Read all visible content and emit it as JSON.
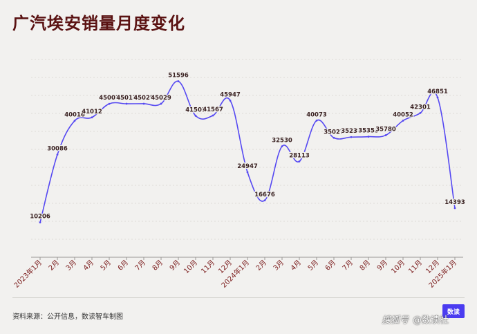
{
  "title": "广汽埃安销量月度变化",
  "source": "资料来源：公开信息，数读智车制图",
  "logo_text": "数读",
  "watermark": {
    "brand": "搜狐号",
    "handle": "@数读社"
  },
  "colors": {
    "line": "#5548f2",
    "title": "#5a1212",
    "tick": "#7a1a1a",
    "grid": "#d6d4d0",
    "background": "#f2f1ef"
  },
  "chart_data": {
    "type": "line",
    "title": "广汽埃安销量月度变化",
    "xlabel": "",
    "ylabel": "",
    "ylim": [
      0,
      58000
    ],
    "grid": true,
    "legend": "none",
    "categories": [
      "2023年1月",
      "2月",
      "3月",
      "4月",
      "5月",
      "6月",
      "7月",
      "8月",
      "9月",
      "10月",
      "11月",
      "12月",
      "2024年1月",
      "2月",
      "3月",
      "4月",
      "5月",
      "6月",
      "7月",
      "8月",
      "9月",
      "10月",
      "11月",
      "12月",
      "2025年1月"
    ],
    "series": [
      {
        "values": [
          10206,
          30086,
          40016,
          41012,
          45003,
          45013,
          45025,
          45029,
          51596,
          41503,
          41567,
          45947,
          24947,
          16676,
          32530,
          28113,
          40073,
          35027,
          35238,
          35355,
          35780,
          40052,
          42301,
          46851,
          14393
        ]
      }
    ]
  }
}
